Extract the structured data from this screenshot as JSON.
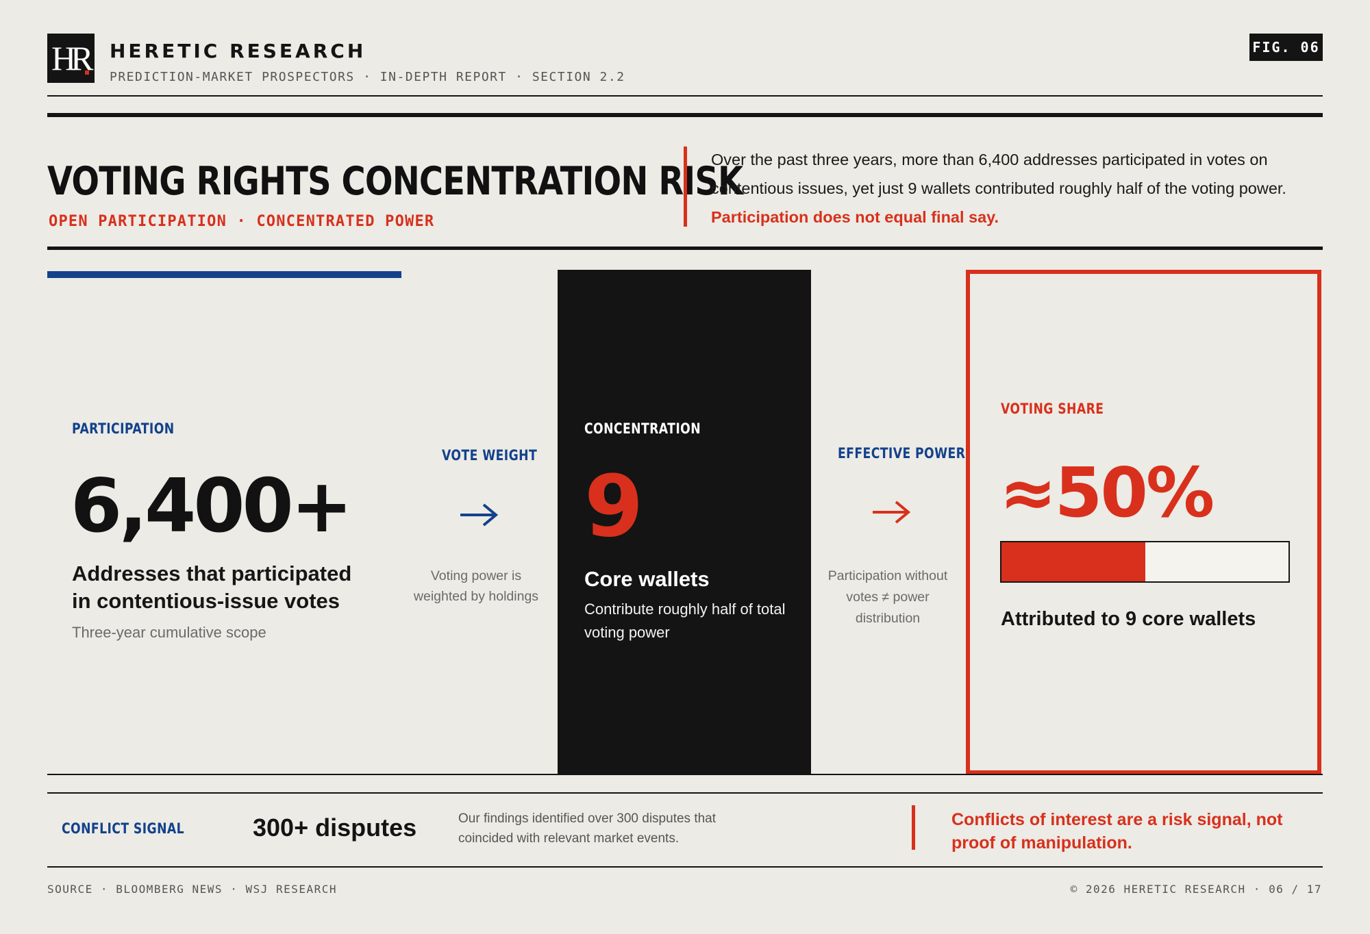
{
  "header": {
    "logo_text": "HR",
    "brand": "HERETIC RESEARCH",
    "breadcrumb": "PREDICTION-MARKET PROSPECTORS · IN-DEPTH REPORT · SECTION 2.2",
    "figure_label": "FIG. 06"
  },
  "title_block": {
    "title": "VOTING RIGHTS CONCENTRATION RISK",
    "subtitle": "OPEN PARTICIPATION · CONCENTRATED POWER",
    "intro": "Over the past three years, more than 6,400 addresses participated in votes on contentious issues, yet just 9 wallets contributed roughly half of the voting power.",
    "intro_emphasis": "Participation does not equal final say."
  },
  "panels": {
    "participation": {
      "kicker": "PARTICIPATION",
      "value": "6,400+",
      "description": "Addresses that participated in contentious-issue votes",
      "note": "Three-year cumulative scope"
    },
    "vote_weight": {
      "kicker": "VOTE WEIGHT",
      "icon": "arrow-right-icon",
      "note": "Voting power is weighted by holdings"
    },
    "concentration": {
      "kicker": "CONCENTRATION",
      "value": "9",
      "description": "Core wallets",
      "note": "Contribute roughly half of total voting power"
    },
    "effective_power": {
      "kicker": "EFFECTIVE POWER",
      "icon": "arrow-right-icon",
      "note": "Participation without votes ≠ power distribution"
    },
    "voting_share": {
      "kicker": "VOTING SHARE",
      "value": "≈50%",
      "share_fraction": 0.5,
      "description": "Attributed to 9 core wallets"
    }
  },
  "conflict_strip": {
    "kicker": "CONFLICT SIGNAL",
    "value": "300+ disputes",
    "note": "Our findings identified over 300 disputes that coincided with relevant market events.",
    "callout": "Conflicts of interest are a risk signal, not proof of manipulation."
  },
  "footer": {
    "source": "SOURCE · BLOOMBERG NEWS · WSJ RESEARCH",
    "copyright": "© 2026 HERETIC RESEARCH · 06 / 17"
  },
  "colors": {
    "background": "#ecebe5",
    "ink": "#141414",
    "accent_red": "#d8301c",
    "accent_blue": "#13418c"
  }
}
